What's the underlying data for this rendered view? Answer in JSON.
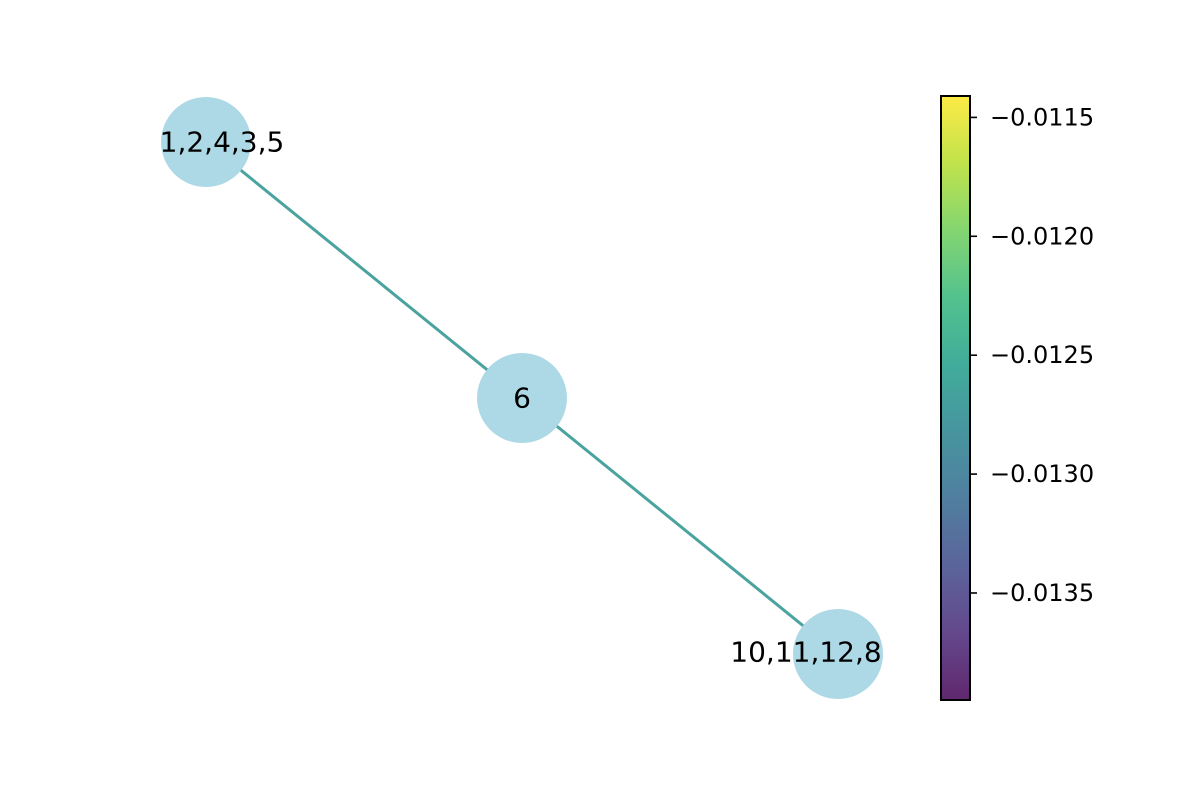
{
  "graph": {
    "nodes": [
      {
        "id": "n1",
        "label": "1,2,4,3,5"
      },
      {
        "id": "n2",
        "label": "6"
      },
      {
        "id": "n3",
        "label": "10,11,12,8"
      }
    ],
    "edges": [
      {
        "source": "n1",
        "target": "n2",
        "weight": -0.01268
      },
      {
        "source": "n2",
        "target": "n3",
        "weight": -0.01268
      }
    ],
    "node_color": "#add8e6",
    "edge_color": "#4aa39f"
  },
  "colorbar": {
    "colormap": "viridis",
    "range": [
      -0.01395,
      -0.01141
    ],
    "ticks": [
      {
        "value": -0.0115,
        "label": "−0.0115"
      },
      {
        "value": -0.012,
        "label": "−0.0120"
      },
      {
        "value": -0.0125,
        "label": "−0.0125"
      },
      {
        "value": -0.013,
        "label": "−0.0130"
      },
      {
        "value": -0.0135,
        "label": "−0.0135"
      }
    ]
  }
}
